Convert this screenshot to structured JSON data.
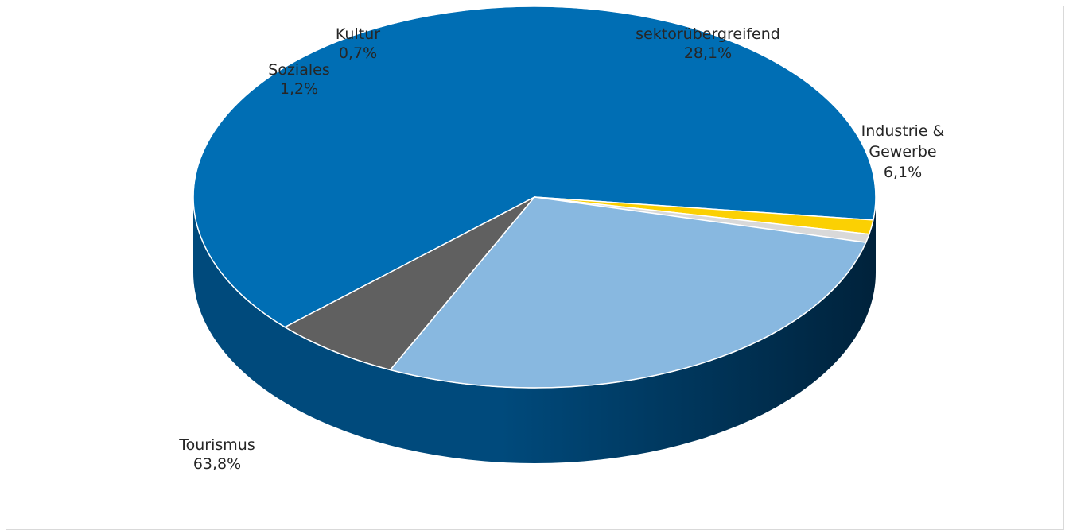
{
  "chart_data": {
    "type": "pie",
    "variant": "3d",
    "title": "",
    "unit": "%",
    "slices": [
      {
        "label": "Tourismus",
        "value": 63.8,
        "value_label": "63,8%",
        "color": "#006eb4"
      },
      {
        "label": "Soziales",
        "value": 1.2,
        "value_label": "1,2%",
        "color": "#fbd003"
      },
      {
        "label": "Kultur",
        "value": 0.7,
        "value_label": "0,7%",
        "color": "#d9d9d9"
      },
      {
        "label": "sektorübergreifend",
        "value": 28.1,
        "value_label": "28,1%",
        "color": "#88b8e0"
      },
      {
        "label": "Industrie & Gewerbe",
        "value": 6.1,
        "value_label": "6,1%",
        "color": "#606060"
      }
    ]
  }
}
